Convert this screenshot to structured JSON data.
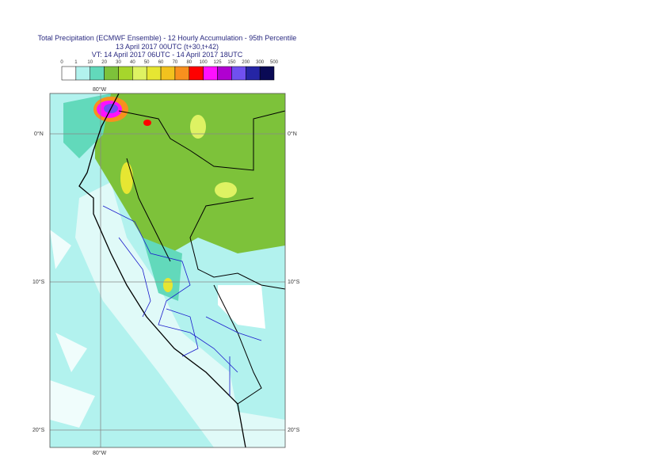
{
  "title": {
    "line1": "Total Precipitation (ECMWF Ensemble) - 12 Hourly Accumulation - 95th Percentile",
    "line2": "13 April 2017 00UTC (t+30,t+42)",
    "line3": "VT: 14 April 2017 06UTC - 14 April 2017 18UTC"
  },
  "colorbar": {
    "labels": [
      "0",
      "1",
      "10",
      "20",
      "30",
      "40",
      "50",
      "60",
      "70",
      "80",
      "100",
      "125",
      "150",
      "200",
      "300",
      "500"
    ],
    "colors": [
      "#ffffff",
      "#b2f2ee",
      "#62d9bb",
      "#7dc23a",
      "#a6d62c",
      "#def263",
      "#e6e632",
      "#f2c21e",
      "#f8901e",
      "#ff0000",
      "#ff10ff",
      "#b000d0",
      "#7050f0",
      "#2525a5",
      "#0a0a55"
    ]
  },
  "axes": {
    "lat_left": [
      "0°N",
      "10°S",
      "20°S"
    ],
    "lat_right": [
      "0°N",
      "10°S",
      "20°S"
    ],
    "lon_top": "80°W",
    "lon_bottom": "80°W"
  }
}
